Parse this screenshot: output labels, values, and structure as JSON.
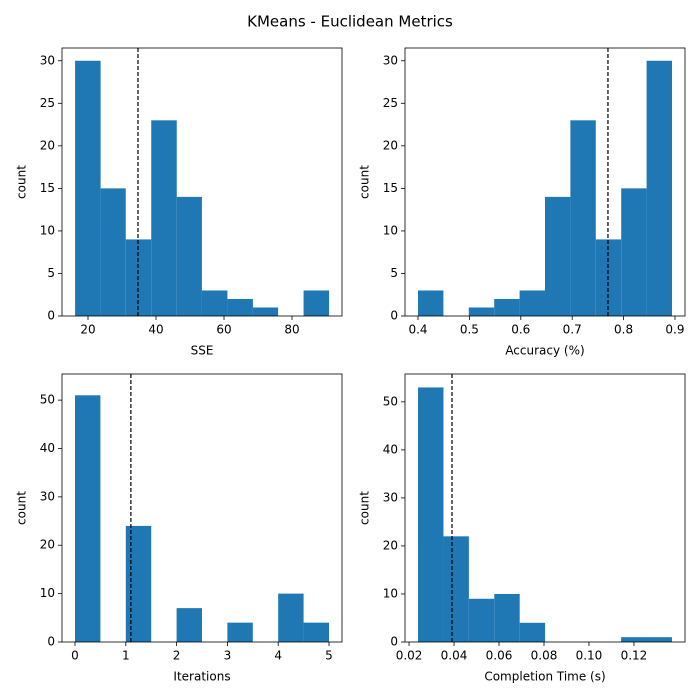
{
  "title": "KMeans - Euclidean Metrics",
  "chart_data": [
    {
      "type": "histogram",
      "x_label": "SSE",
      "y_label": "count",
      "color": "#1f77b4",
      "bins": [
        16.2,
        23.7,
        31.1,
        38.6,
        46.1,
        53.5,
        61.0,
        68.5,
        75.9,
        83.4,
        90.9
      ],
      "values": [
        30,
        15,
        9,
        23,
        14,
        3,
        2,
        1,
        0,
        3
      ],
      "mean_line": 34.7,
      "xlim": [
        12.35,
        94.7
      ],
      "xticks": [
        20,
        40,
        60,
        80
      ],
      "ylim": [
        0,
        31.5
      ],
      "yticks": [
        0,
        5,
        10,
        15,
        20,
        25,
        30
      ]
    },
    {
      "type": "histogram",
      "x_label": "Accuracy (%)",
      "y_label": "count",
      "color": "#1f77b4",
      "bins": [
        0.4,
        0.4494,
        0.4988,
        0.5483,
        0.5977,
        0.6471,
        0.6965,
        0.7459,
        0.7954,
        0.8448,
        0.8942
      ],
      "values": [
        3,
        0,
        1,
        2,
        3,
        14,
        23,
        9,
        15,
        30
      ],
      "mean_line": 0.7696,
      "xlim": [
        0.3747,
        0.9195
      ],
      "xticks": [
        0.4,
        0.5,
        0.6,
        0.7,
        0.8,
        0.9
      ],
      "ylim": [
        0,
        31.5
      ],
      "yticks": [
        0,
        5,
        10,
        15,
        20,
        25,
        30
      ]
    },
    {
      "type": "histogram",
      "x_label": "Iterations",
      "y_label": "count",
      "color": "#1f77b4",
      "bins": [
        0,
        0.5,
        1,
        1.5,
        2,
        2.5,
        3,
        3.5,
        4,
        4.5,
        5
      ],
      "values": [
        51,
        0,
        24,
        0,
        7,
        0,
        4,
        0,
        10,
        4
      ],
      "mean_line": 1.1,
      "xlim": [
        -0.256,
        5.256
      ],
      "xticks": [
        0,
        1,
        2,
        3,
        4,
        5
      ],
      "ylim": [
        0,
        55.4
      ],
      "yticks": [
        0,
        10,
        20,
        30,
        40,
        50
      ]
    },
    {
      "type": "histogram",
      "x_label": "Completion Time (s)",
      "y_label": "count",
      "color": "#1f77b4",
      "bins": [
        0.024,
        0.0353,
        0.0466,
        0.0579,
        0.0692,
        0.0805,
        0.0917,
        0.103,
        0.1143,
        0.1256,
        0.1369
      ],
      "values": [
        53,
        22,
        9,
        10,
        4,
        0,
        0,
        0,
        1,
        1
      ],
      "mean_line": 0.0391,
      "xlim": [
        0.0182,
        0.1427
      ],
      "xticks": [
        0.02,
        0.04,
        0.06,
        0.08,
        {
          "value": 0.1,
          "label": "0.10"
        },
        0.12
      ],
      "ylim": [
        0,
        55.8
      ],
      "yticks": [
        0,
        10,
        20,
        30,
        40,
        50
      ]
    }
  ]
}
